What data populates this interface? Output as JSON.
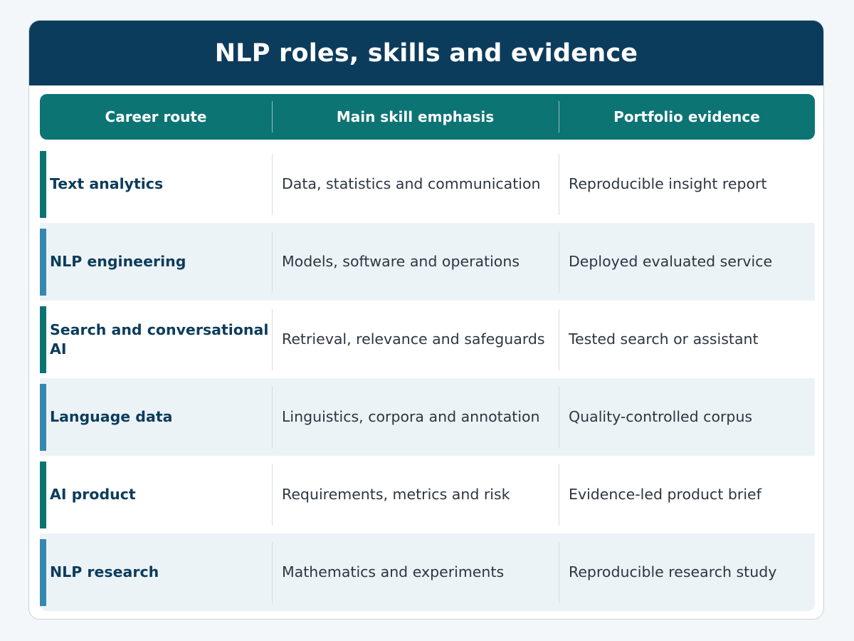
{
  "title": "NLP roles, skills and evidence",
  "colors": {
    "banner": "#0c3c5c",
    "header": "#0d7474",
    "accent_teal": "#0d7474",
    "accent_blue": "#3589b0",
    "alt_row": "#ecf3f7"
  },
  "columns": [
    "Career route",
    "Main skill emphasis",
    "Portfolio evidence"
  ],
  "rows": [
    {
      "route": "Text analytics",
      "skill": "Data, statistics and communication",
      "evidence": "Reproducible insight report",
      "accent": "#0d7474"
    },
    {
      "route": "NLP engineering",
      "skill": "Models, software and operations",
      "evidence": "Deployed evaluated service",
      "accent": "#3589b0"
    },
    {
      "route": "Search and conversational AI",
      "skill": "Retrieval, relevance and safeguards",
      "evidence": "Tested search or assistant",
      "accent": "#0d7474"
    },
    {
      "route": "Language data",
      "skill": "Linguistics, corpora and annotation",
      "evidence": "Quality-controlled corpus",
      "accent": "#3589b0"
    },
    {
      "route": "AI product",
      "skill": "Requirements, metrics and risk",
      "evidence": "Evidence-led product brief",
      "accent": "#0d7474"
    },
    {
      "route": "NLP research",
      "skill": "Mathematics and experiments",
      "evidence": "Reproducible research study",
      "accent": "#3589b0"
    }
  ]
}
